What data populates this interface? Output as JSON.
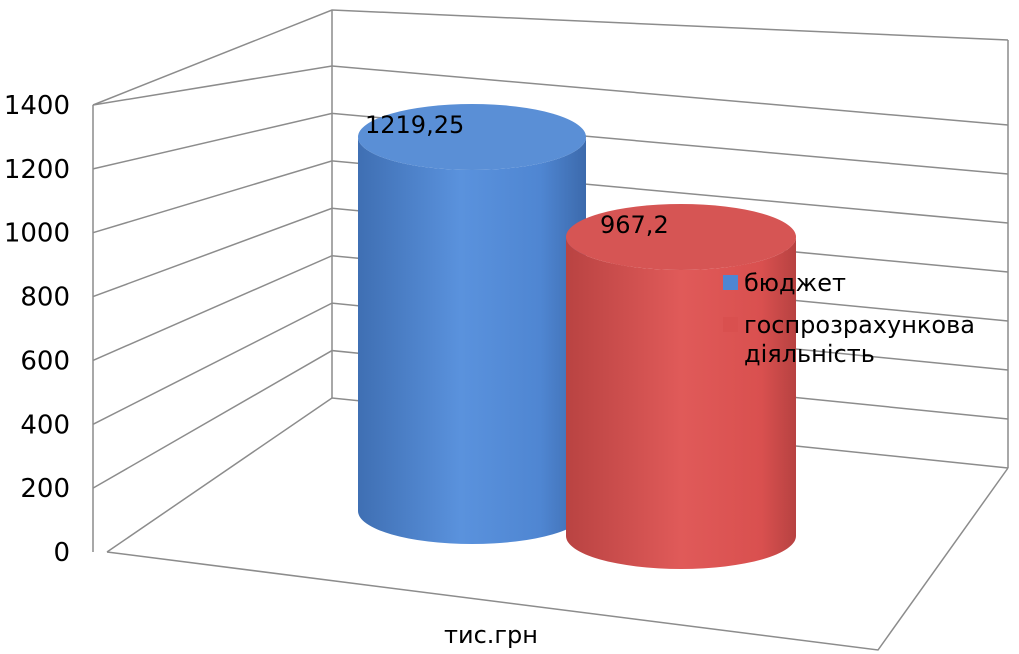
{
  "chart_data": {
    "type": "bar",
    "style": "3d-cylinder",
    "categories": [
      "тис.грн"
    ],
    "series": [
      {
        "name": "бюджет",
        "values": [
          1219.25
        ],
        "label": "1219,25",
        "color": "#4f86d2"
      },
      {
        "name": "госпрозрахункова діяльність",
        "values": [
          967.2
        ],
        "label": "967,2",
        "color": "#d9504f"
      }
    ],
    "legend": {
      "placement": "right",
      "items": [
        {
          "lines": [
            "бюджет"
          ],
          "color": "#4f86d2"
        },
        {
          "lines": [
            "госпрозрахункова",
            "діяльність"
          ],
          "color": "#d9504f"
        }
      ]
    },
    "ylim": [
      0,
      1400
    ],
    "yticks": [
      "0",
      "200",
      "400",
      "600",
      "800",
      "1000",
      "1200",
      "1400"
    ],
    "grid": true
  }
}
